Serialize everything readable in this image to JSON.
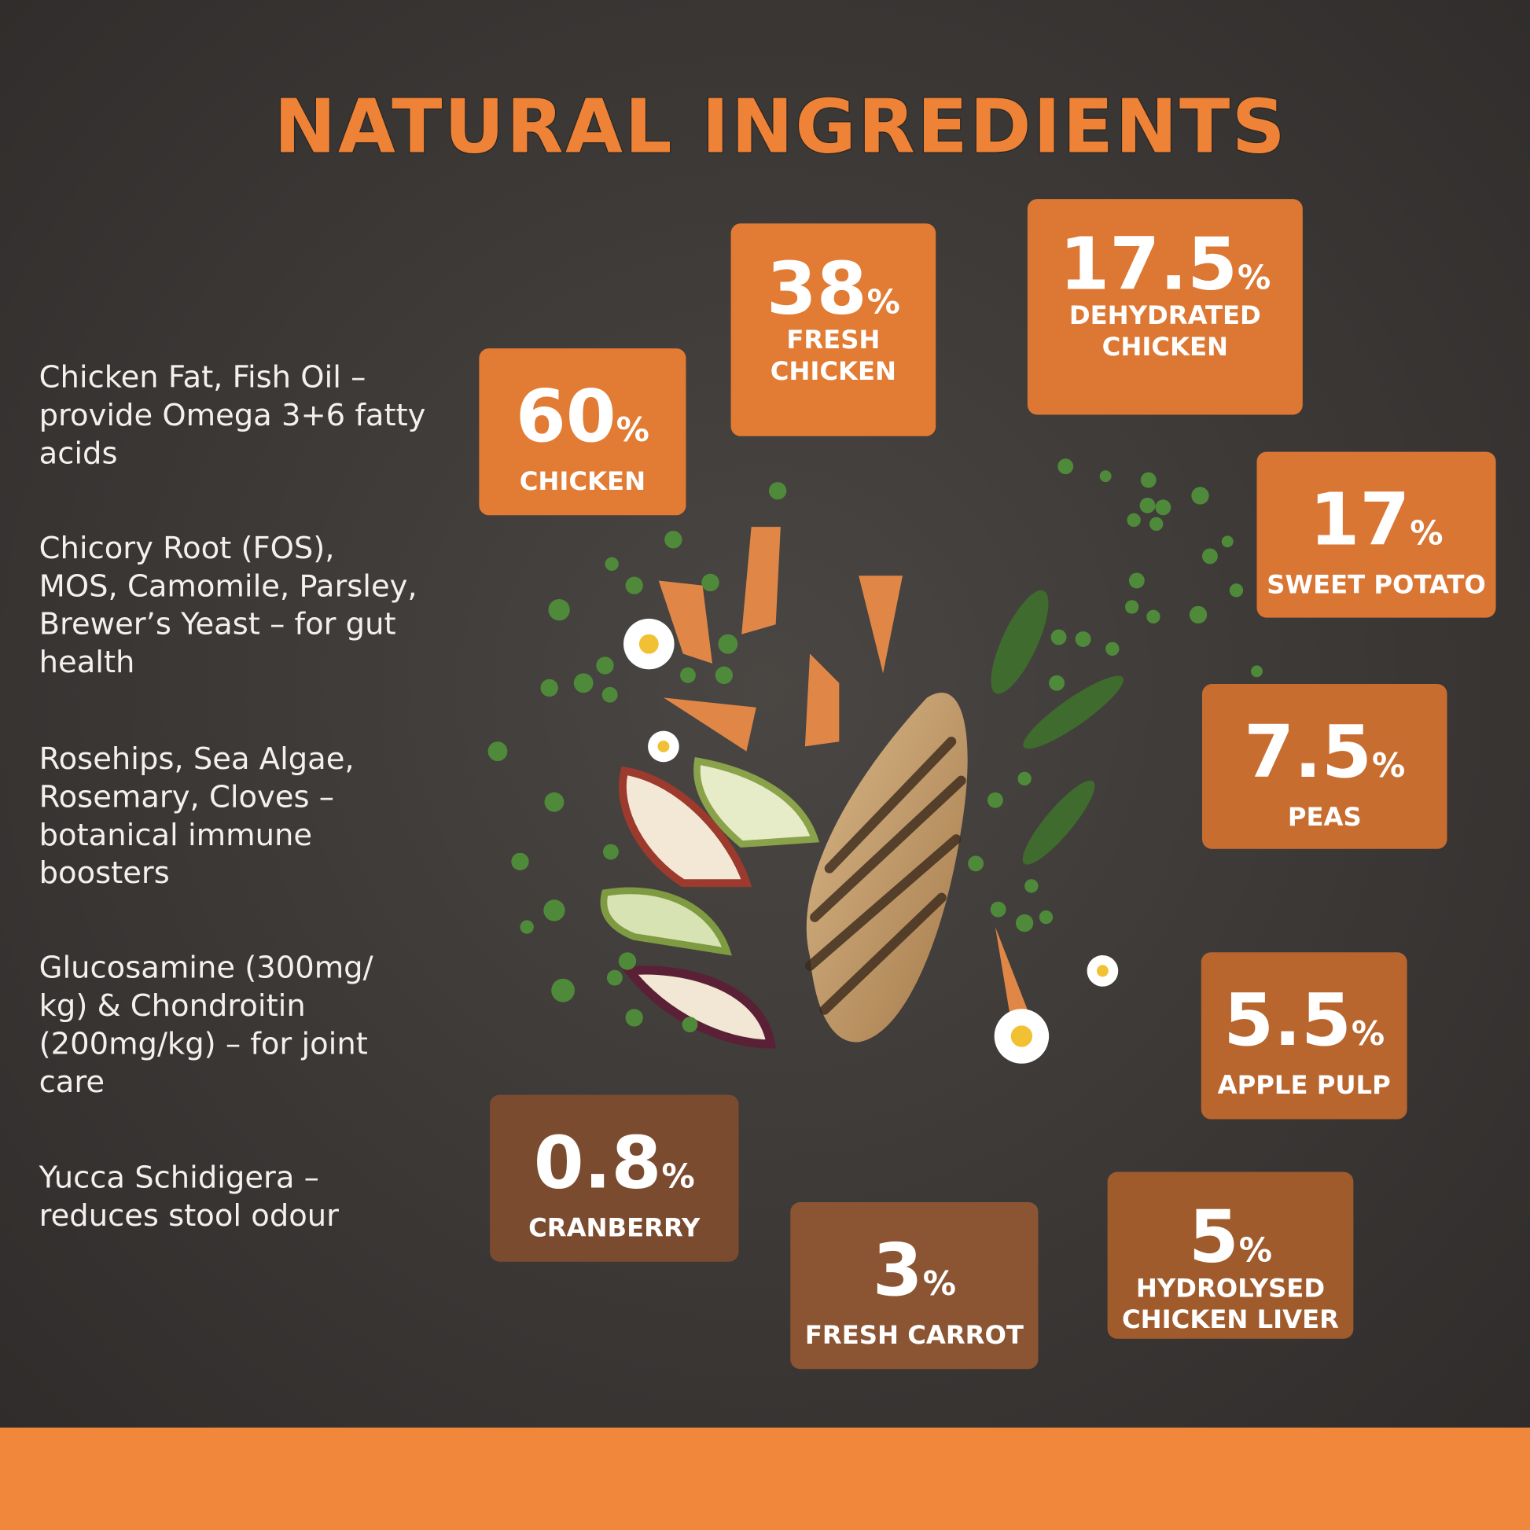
{
  "header": {
    "title": "NATURAL INGREDIENTS"
  },
  "side_notes": [
    [
      "Chicken Fat, Fish Oil –",
      "provide Omega 3+6 fatty",
      "acids"
    ],
    [
      "Chicory Root (FOS),",
      "MOS, Camomile, Parsley,",
      "Brewer’s Yeast – for gut",
      "health"
    ],
    [
      "Rosehips, Sea Algae,",
      "Rosemary, Cloves –",
      "botanical immune",
      "boosters"
    ],
    [
      "Glucosamine (300mg/",
      "kg) & Chondroitin",
      "(200mg/kg) – for joint",
      "care"
    ],
    [
      "Yucca Schidigera –",
      "reduces stool odour"
    ]
  ],
  "ingredients": [
    {
      "amount": "60",
      "unit": "%",
      "label": [
        "CHICKEN"
      ],
      "color": "#e27b33"
    },
    {
      "amount": "38",
      "unit": "%",
      "label": [
        "FRESH",
        "CHICKEN"
      ],
      "color": "#e27b33"
    },
    {
      "amount": "17.5",
      "unit": "%",
      "label": [
        "DEHYDRATED",
        "CHICKEN"
      ],
      "color": "#dc7834"
    },
    {
      "amount": "17",
      "unit": "%",
      "label": [
        "SWEET POTATO"
      ],
      "color": "#d97633"
    },
    {
      "amount": "7.5",
      "unit": "%",
      "label": [
        "PEAS"
      ],
      "color": "#c86d30"
    },
    {
      "amount": "5.5",
      "unit": "%",
      "label": [
        "APPLE PULP"
      ],
      "color": "#b9652e"
    },
    {
      "amount": "5",
      "unit": "%",
      "label": [
        "HYDROLYSED",
        "CHICKEN LIVER"
      ],
      "color": "#a05b2d"
    },
    {
      "amount": "3",
      "unit": "%",
      "label": [
        "FRESH CARROT"
      ],
      "color": "#8b5432"
    },
    {
      "amount": "0.8",
      "unit": "%",
      "label": [
        "CRANBERRY"
      ],
      "color": "#7b4b30"
    }
  ]
}
